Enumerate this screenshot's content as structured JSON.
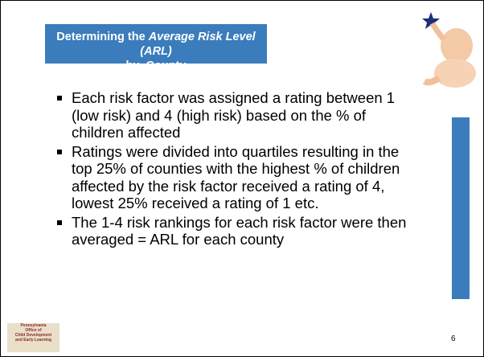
{
  "title": {
    "part1": "Determining the",
    "italic": "Average Risk Level (ARL)",
    "line2": "by  County"
  },
  "bullets": [
    "Each risk factor was assigned a rating between 1 (low risk) and 4 (high risk) based on the % of children affected",
    "Ratings were divided into quartiles resulting in the top 25% of counties with the highest % of children affected  by the risk factor received a rating of 4, lowest 25% received a rating of 1 etc.",
    "The 1-4 risk rankings for each risk factor were then averaged = ARL for each county"
  ],
  "logo": [
    "Pennsylvania",
    "Office of",
    "Child Development",
    "and Early Learning"
  ],
  "page_number": "6"
}
